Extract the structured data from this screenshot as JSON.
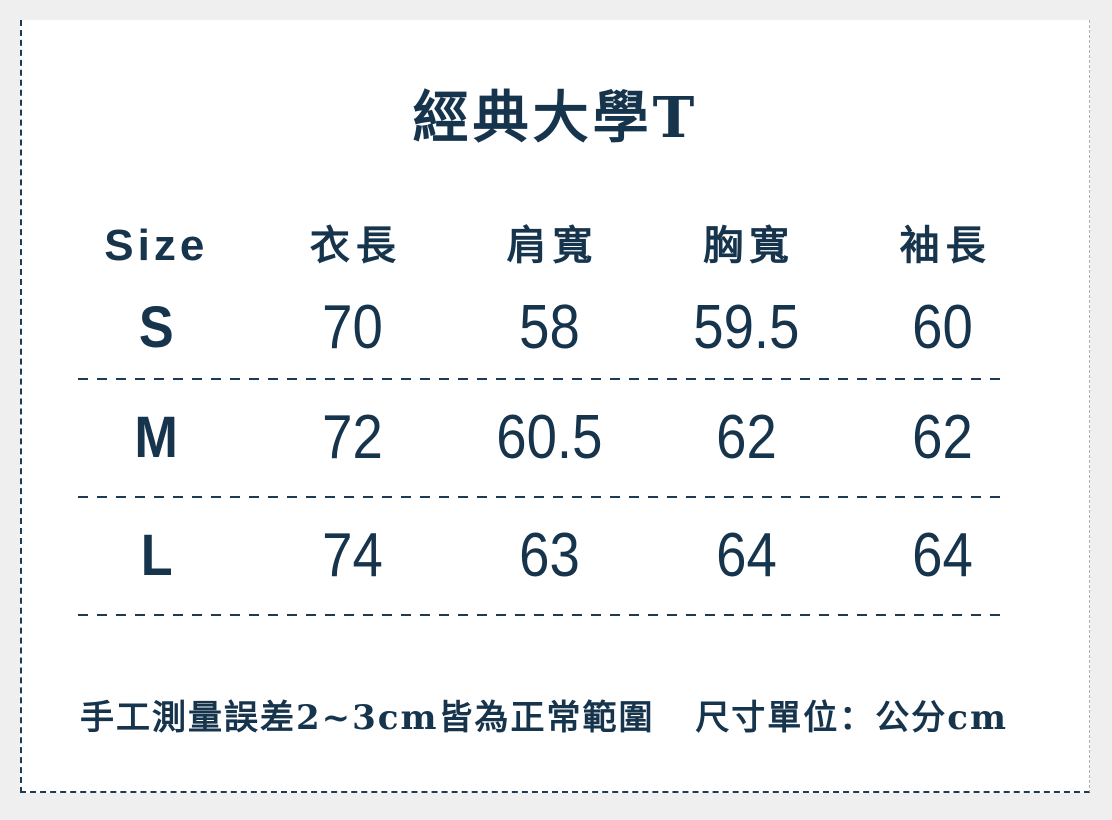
{
  "chart_data": {
    "type": "table",
    "title": "經典大學T",
    "columns": [
      "Size",
      "衣長",
      "肩寬",
      "胸寬",
      "袖長"
    ],
    "rows": [
      {
        "label": "S",
        "values": [
          70,
          58,
          59.5,
          60
        ]
      },
      {
        "label": "M",
        "values": [
          72,
          60.5,
          62,
          62
        ]
      },
      {
        "label": "L",
        "values": [
          74,
          63,
          64,
          64
        ]
      }
    ],
    "unit": "cm",
    "notes": {
      "measurement": "手工測量誤差2~3cm皆為正常範圍",
      "unit_label": "尺寸單位：公分cm"
    }
  },
  "colors": {
    "text": "#17344d",
    "page_background": "#efefef",
    "card_background": "#ffffff",
    "border_dark": "#1d3b54",
    "border_light": "#a7b2bc"
  }
}
